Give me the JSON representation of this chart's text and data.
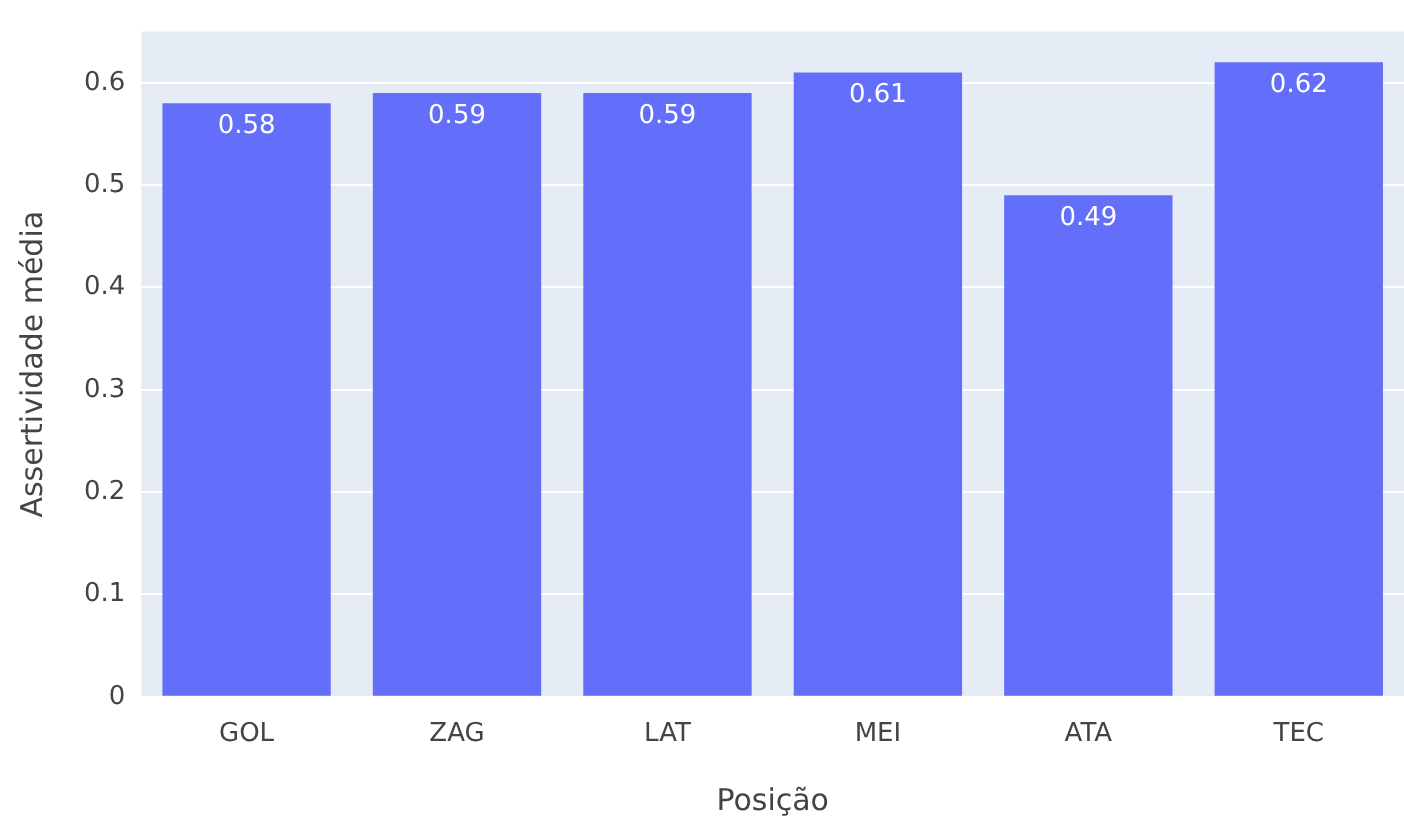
{
  "chart_data": {
    "type": "bar",
    "xlabel": "Posição",
    "ylabel": "Assertividade média",
    "categories": [
      "GOL",
      "ZAG",
      "LAT",
      "MEI",
      "ATA",
      "TEC"
    ],
    "values": [
      0.58,
      0.59,
      0.59,
      0.61,
      0.49,
      0.62
    ],
    "color": "#636efa",
    "ylim": [
      0,
      0.65
    ],
    "yticks": [
      0,
      0.1,
      0.2,
      0.3,
      0.4,
      0.5,
      0.6
    ],
    "grid": "y",
    "data_labels": true,
    "legend": false
  }
}
